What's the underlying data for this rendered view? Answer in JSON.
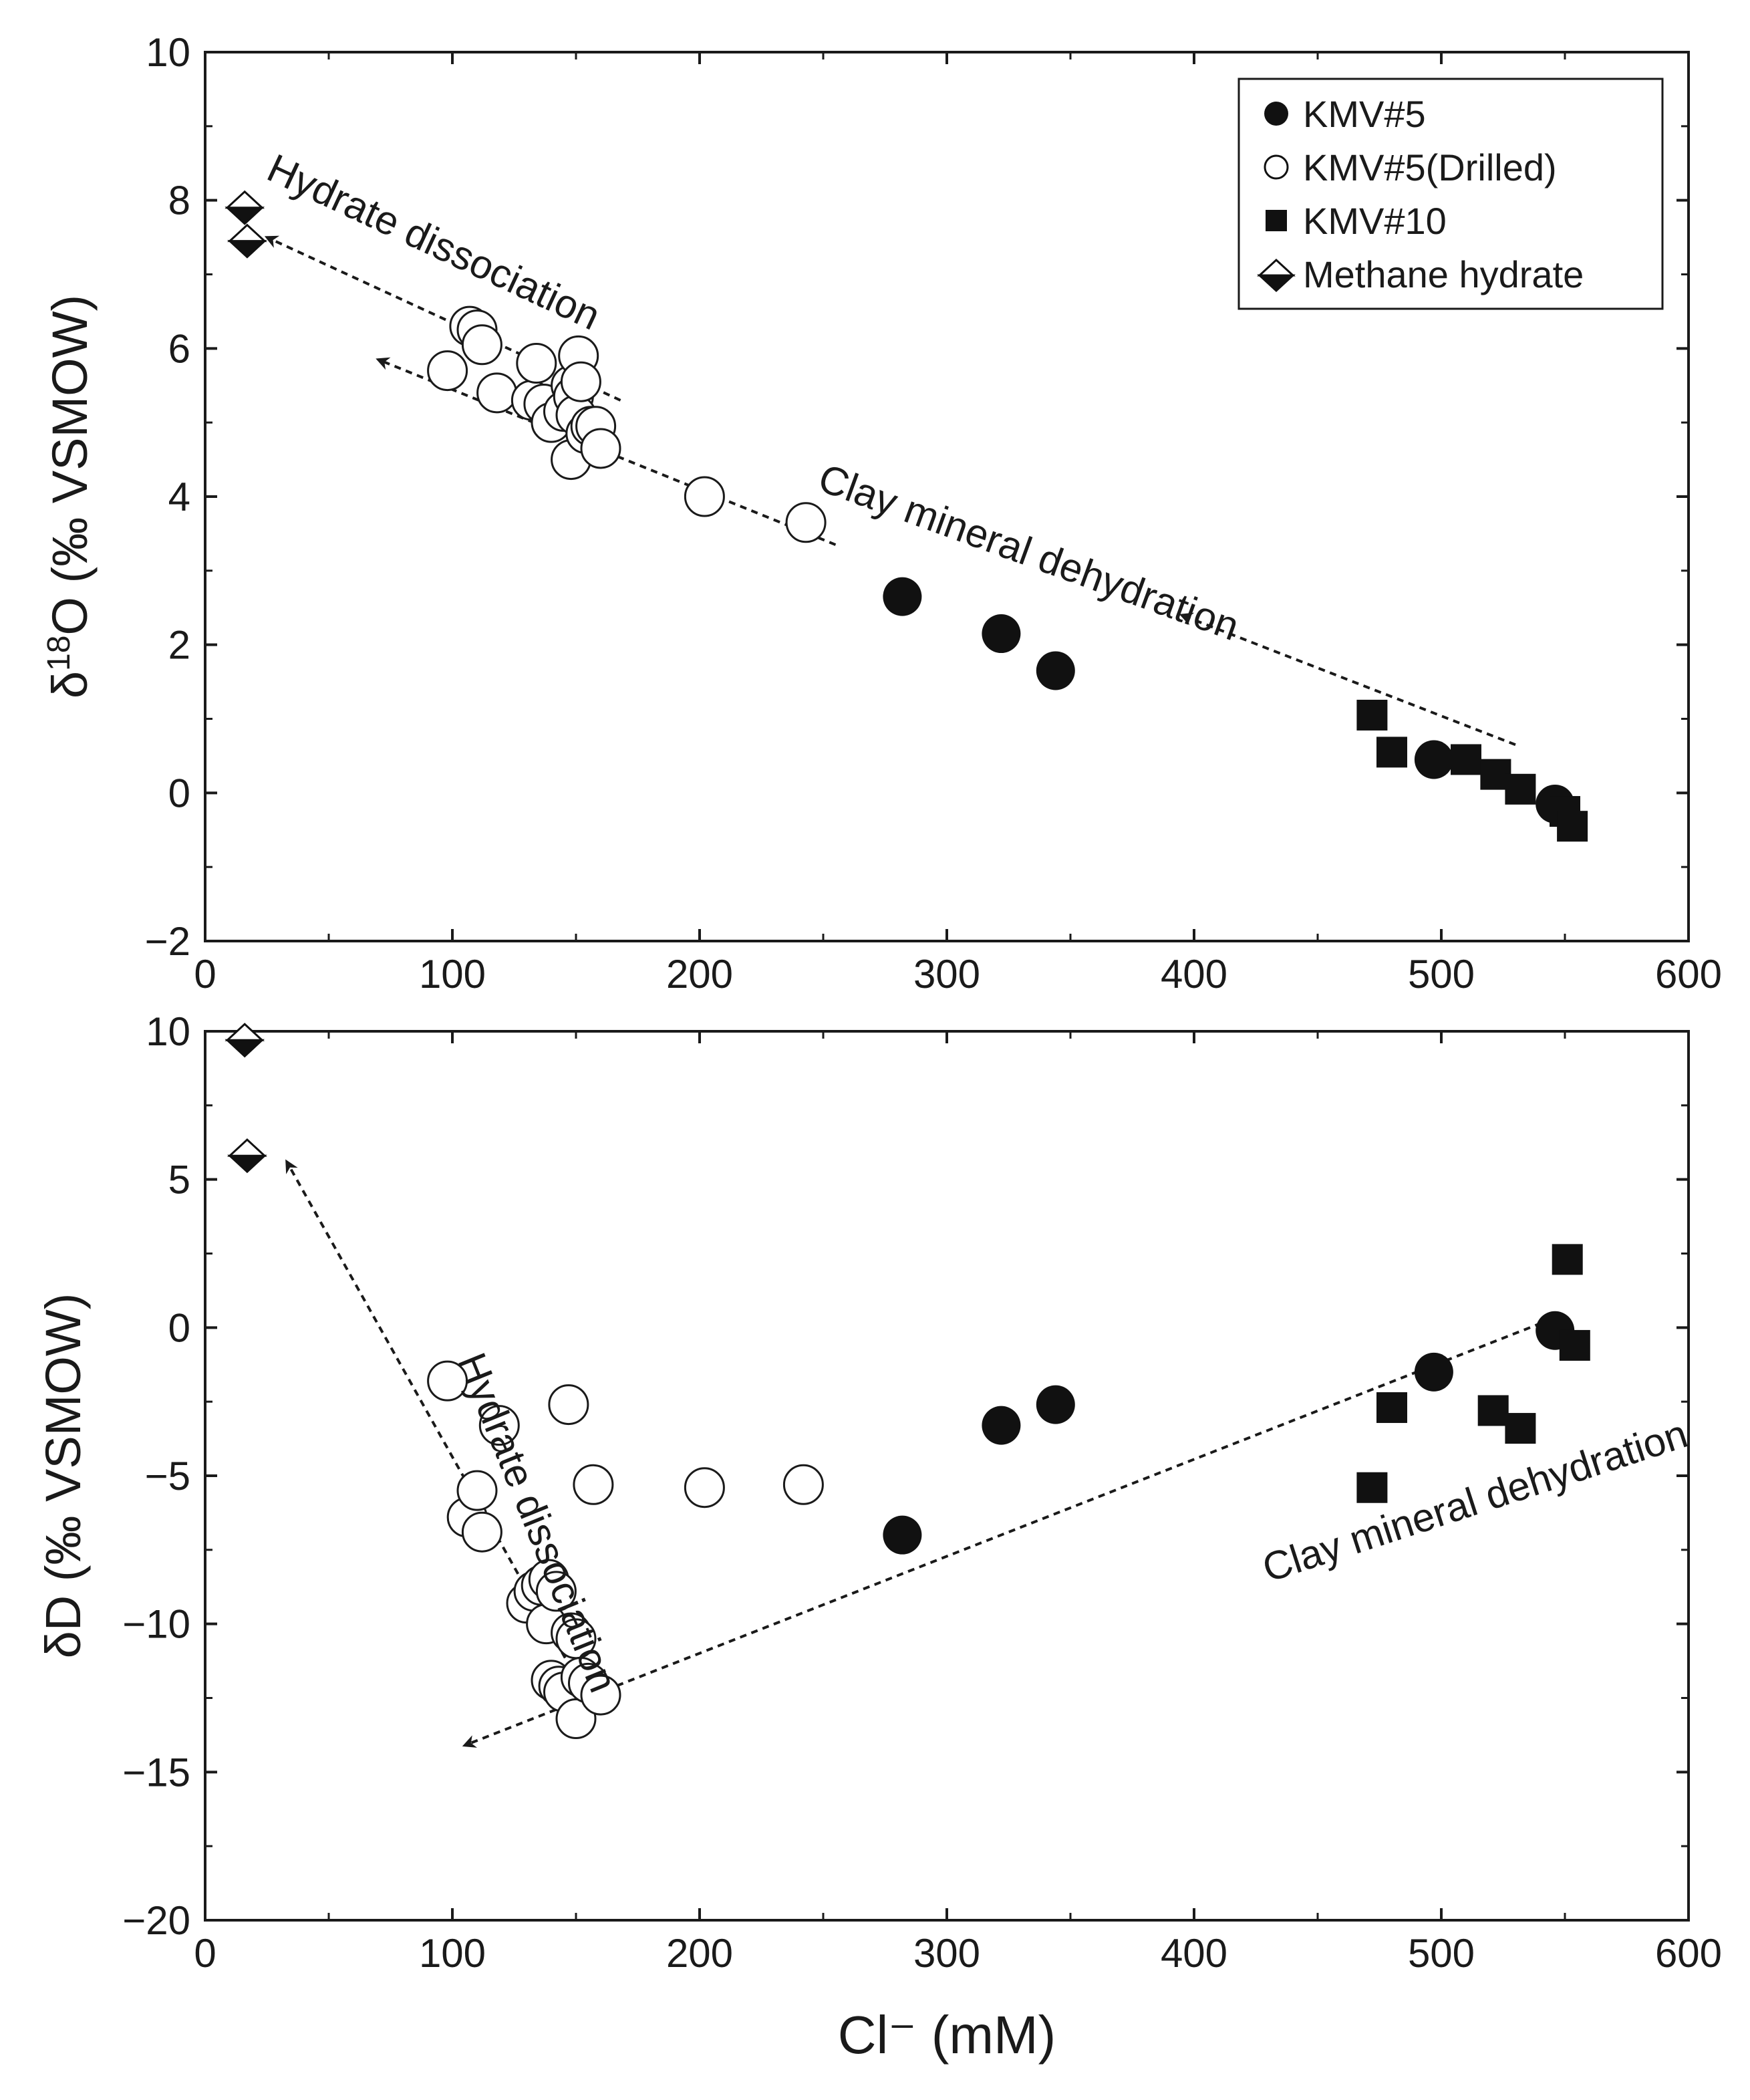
{
  "chart_data": {
    "type": "scatter",
    "xlabel": "Cl⁻ (mM)",
    "xlim": [
      0,
      600
    ],
    "xticks": [
      0,
      100,
      200,
      300,
      400,
      500,
      600
    ],
    "legend": {
      "position": "top-right",
      "entries": [
        {
          "series": "kmv5",
          "label": "KMV#5",
          "marker": "filled-circle"
        },
        {
          "series": "kmv5d",
          "label": "KMV#5(Drilled)",
          "marker": "open-circle"
        },
        {
          "series": "kmv10",
          "label": "KMV#10",
          "marker": "filled-square"
        },
        {
          "series": "mh",
          "label": "Methane hydrate",
          "marker": "half-filled-diamond"
        }
      ]
    },
    "panels": [
      {
        "id": "d18o",
        "ylabel_prefix": "δ",
        "ylabel_sup": "18",
        "ylabel_rest": "O (‰ VSMOW)",
        "ylim": [
          -2,
          10
        ],
        "yticks": [
          -2,
          0,
          2,
          4,
          6,
          8,
          10
        ],
        "series": {
          "kmv5": [
            [
              282,
              2.65
            ],
            [
              322,
              2.15
            ],
            [
              344,
              1.65
            ],
            [
              497,
              0.45
            ],
            [
              546,
              -0.15
            ]
          ],
          "kmv5d": [
            [
              98,
              5.7
            ],
            [
              107,
              6.3
            ],
            [
              110,
              6.25
            ],
            [
              112,
              6.05
            ],
            [
              118,
              5.4
            ],
            [
              132,
              5.3
            ],
            [
              134,
              5.8
            ],
            [
              137,
              5.25
            ],
            [
              140,
              5.0
            ],
            [
              145,
              5.15
            ],
            [
              148,
              5.5
            ],
            [
              148,
              4.5
            ],
            [
              149,
              5.35
            ],
            [
              150,
              5.1
            ],
            [
              151,
              5.9
            ],
            [
              152,
              5.55
            ],
            [
              154,
              4.85
            ],
            [
              156,
              4.95
            ],
            [
              158,
              4.95
            ],
            [
              160,
              4.65
            ],
            [
              202,
              4.0
            ],
            [
              243,
              3.65
            ]
          ],
          "kmv10": [
            [
              472,
              1.05
            ],
            [
              480,
              0.55
            ],
            [
              510,
              0.45
            ],
            [
              522,
              0.25
            ],
            [
              532,
              0.05
            ],
            [
              550,
              -0.25
            ],
            [
              553,
              -0.45
            ]
          ],
          "mh": [
            [
              16,
              7.9
            ],
            [
              17,
              7.45
            ]
          ]
        },
        "arrows": [
          {
            "from": [
              255,
              3.35
            ],
            "to": [
              70,
              5.85
            ]
          },
          {
            "from": [
              530,
              0.65
            ],
            "to": [
              395,
              2.4
            ]
          },
          {
            "from": [
              168,
              5.3
            ],
            "to": [
              25,
              7.5
            ]
          }
        ],
        "annotations": [
          {
            "text": "Hydrate dissociation",
            "x": 24,
            "y": 8.3,
            "rotate": 25
          },
          {
            "text": "Clay mineral dehydration",
            "x": 247,
            "y": 4.1,
            "rotate": 20
          }
        ]
      },
      {
        "id": "dd",
        "ylabel_prefix": "δD (‰ VSMOW)",
        "ylabel_sup": "",
        "ylabel_rest": "",
        "ylim": [
          -20,
          10
        ],
        "yticks": [
          -20,
          -15,
          -10,
          -5,
          0,
          5,
          10
        ],
        "series": {
          "kmv5": [
            [
              282,
              -7.0
            ],
            [
              322,
              -3.3
            ],
            [
              344,
              -2.6
            ],
            [
              497,
              -1.5
            ],
            [
              546,
              -0.1
            ]
          ],
          "kmv5d": [
            [
              98,
              -1.8
            ],
            [
              106,
              -6.4
            ],
            [
              110,
              -5.5
            ],
            [
              112,
              -6.9
            ],
            [
              119,
              -3.3
            ],
            [
              130,
              -9.3
            ],
            [
              133,
              -8.9
            ],
            [
              136,
              -8.7
            ],
            [
              138,
              -10.0
            ],
            [
              139,
              -8.5
            ],
            [
              140,
              -11.9
            ],
            [
              142,
              -8.9
            ],
            [
              143,
              -12.1
            ],
            [
              145,
              -12.3
            ],
            [
              147,
              -2.6
            ],
            [
              148,
              -10.3
            ],
            [
              150,
              -13.2
            ],
            [
              150,
              -10.5
            ],
            [
              152,
              -11.8
            ],
            [
              155,
              -12.0
            ],
            [
              157,
              -5.3
            ],
            [
              160,
              -12.4
            ],
            [
              202,
              -5.4
            ],
            [
              242,
              -5.3
            ]
          ],
          "kmv10": [
            [
              472,
              -5.4
            ],
            [
              480,
              -2.7
            ],
            [
              521,
              -2.8
            ],
            [
              532,
              -3.4
            ],
            [
              551,
              2.3
            ],
            [
              554,
              -0.6
            ]
          ],
          "mh": [
            [
              16,
              9.7
            ],
            [
              17,
              5.8
            ]
          ]
        },
        "arrows": [
          {
            "from": [
              545,
              0.3
            ],
            "to": [
              105,
              -14.1
            ]
          },
          {
            "from": [
              148,
              -11.5
            ],
            "to": [
              33,
              5.6
            ]
          }
        ],
        "annotations": [
          {
            "text": "Hydrate dissociation",
            "x": 102,
            "y": -1.1,
            "rotate": 68
          },
          {
            "text": "Clay mineral dehydration",
            "x": 430,
            "y": -8.6,
            "rotate": -18
          }
        ]
      }
    ]
  }
}
